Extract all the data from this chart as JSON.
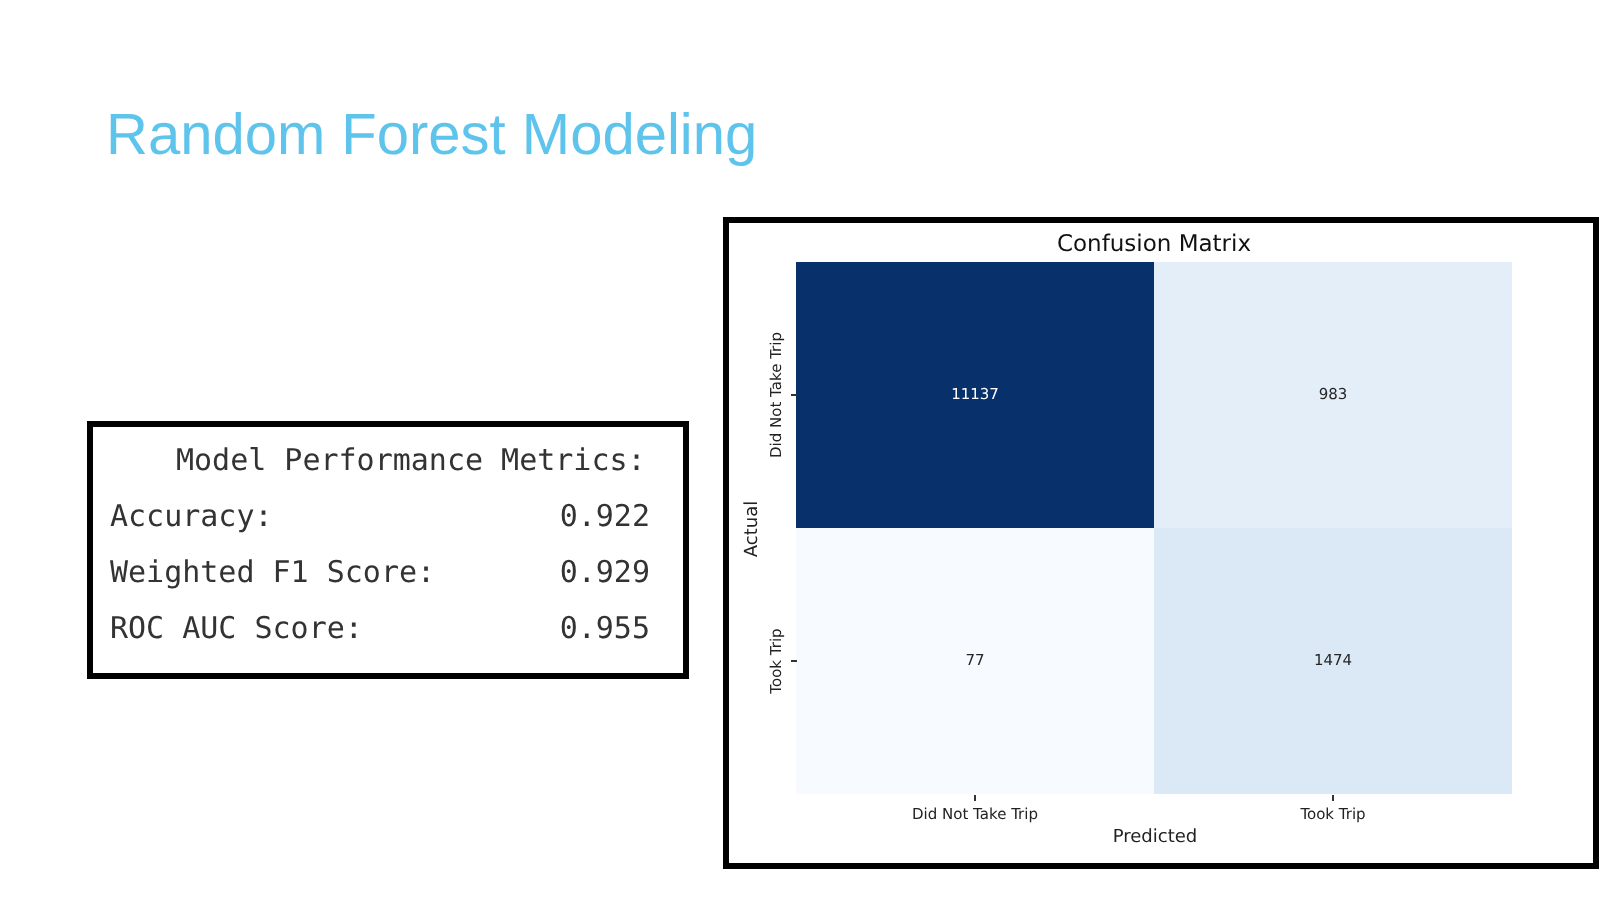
{
  "chart_data": [
    {
      "type": "other",
      "title": "Random Forest Modeling"
    },
    {
      "type": "other",
      "title": "Model Performance Metrics:",
      "annotations": [
        "Accuracy:",
        "0.922",
        "Weighted F1 Score:",
        "0.929",
        "ROC AUC Score:",
        "0.955"
      ]
    },
    {
      "type": "heatmap",
      "title": "Confusion Matrix",
      "categories": [
        "Did Not Take Trip",
        "Took Trip"
      ],
      "y_categories": [
        "Did Not Take Trip",
        "Took Trip"
      ],
      "cells": [
        [
          11137,
          983
        ],
        [
          77,
          1474
        ]
      ],
      "colors": [
        [
          "#08306b",
          "#e3eef9"
        ],
        [
          "#f7fbff",
          "#dbe9f6"
        ]
      ],
      "xlabel": "Predicted",
      "ylabel": "Actual",
      "data_labels": true
    }
  ]
}
